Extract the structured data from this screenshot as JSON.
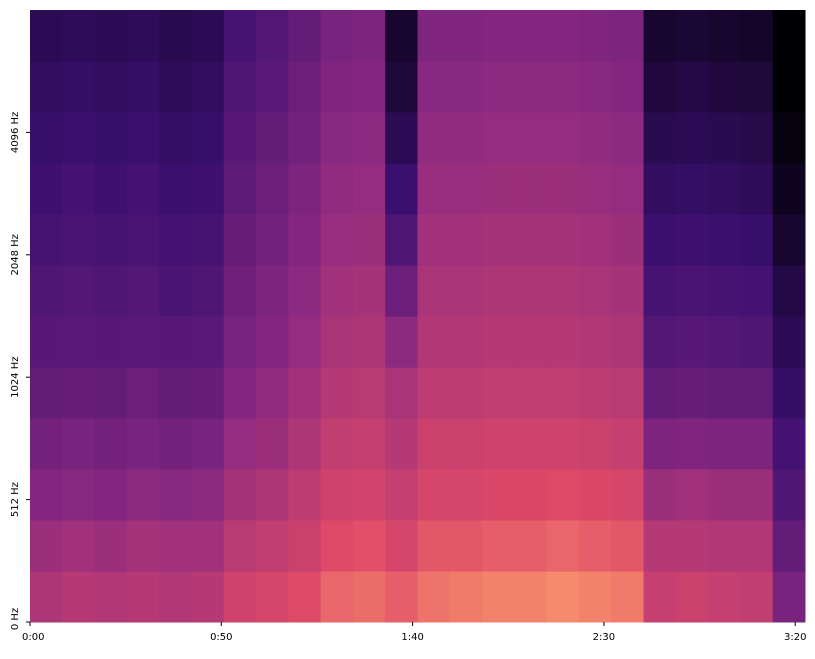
{
  "chart_data": {
    "type": "heatmap",
    "xticks": [
      {
        "value": 0,
        "label": "0:00"
      },
      {
        "value": 50,
        "label": "0:50"
      },
      {
        "value": 100,
        "label": "1:40"
      },
      {
        "value": 150,
        "label": "2:30"
      },
      {
        "value": 200,
        "label": "3:20"
      }
    ],
    "yticks": [
      {
        "value": 0,
        "label": "0 Hz"
      },
      {
        "value": 512,
        "label": "512 Hz"
      },
      {
        "value": 1024,
        "label": "1024 Hz"
      },
      {
        "value": 2048,
        "label": "2048 Hz"
      },
      {
        "value": 4096,
        "label": "4096 Hz"
      }
    ],
    "xlim": [
      0,
      202.56
    ],
    "ylim": [
      0,
      8192
    ],
    "yscale": "symlog",
    "ylinthresh": 512,
    "ylogbase": 2,
    "zlim": [
      -80,
      0
    ],
    "colorscale": [
      [
        0,
        "#000004"
      ],
      [
        0.25,
        "#3b0f70"
      ],
      [
        0.5,
        "#8c2981"
      ],
      [
        0.75,
        "#de4968"
      ],
      [
        0.9,
        "#fe9f6d"
      ],
      [
        1,
        "#fcfdbf"
      ]
    ],
    "xedges": [
      0,
      8.44,
      16.88,
      25.32,
      33.76,
      42.2,
      50.64,
      59.08,
      67.52,
      75.96,
      84.4,
      92.84,
      101.28,
      109.72,
      118.16,
      126.6,
      135.04,
      143.48,
      151.92,
      160.36,
      168.8,
      177.24,
      185.68,
      194.12,
      202.56
    ],
    "yedges": [
      0,
      213,
      427,
      609,
      813,
      1084,
      1448,
      1932,
      2580,
      3444,
      4598,
      6137,
      8192
    ],
    "z": [
      [
        -32,
        -30,
        -31,
        -30,
        -31,
        -30,
        -24,
        -22,
        -20,
        -16,
        -15,
        -17,
        -14,
        -13,
        -12,
        -12,
        -11,
        -12,
        -13,
        -26,
        -25,
        -26,
        -27,
        -45
      ],
      [
        -36,
        -35,
        -36,
        -34,
        -35,
        -35,
        -29,
        -27,
        -25,
        -20,
        -19,
        -22,
        -18,
        -18,
        -17,
        -17,
        -16,
        -17,
        -18,
        -30,
        -30,
        -31,
        -31,
        -50
      ],
      [
        -42,
        -41,
        -42,
        -40,
        -41,
        -40,
        -34,
        -32,
        -28,
        -24,
        -23,
        -26,
        -22,
        -22,
        -21,
        -21,
        -20,
        -21,
        -22,
        -36,
        -35,
        -36,
        -36,
        -55
      ],
      [
        -46,
        -45,
        -46,
        -45,
        -46,
        -45,
        -38,
        -36,
        -32,
        -27,
        -26,
        -30,
        -25,
        -25,
        -24,
        -24,
        -24,
        -25,
        -26,
        -44,
        -43,
        -44,
        -44,
        -58
      ],
      [
        -50,
        -49,
        -50,
        -48,
        -50,
        -49,
        -42,
        -39,
        -35,
        -30,
        -29,
        -33,
        -28,
        -28,
        -27,
        -27,
        -27,
        -28,
        -29,
        -50,
        -49,
        -50,
        -50,
        -62
      ],
      [
        -53,
        -52,
        -53,
        -52,
        -53,
        -52,
        -45,
        -42,
        -38,
        -33,
        -32,
        -40,
        -31,
        -31,
        -30,
        -30,
        -30,
        -31,
        -32,
        -54,
        -53,
        -54,
        -55,
        -65
      ],
      [
        -55,
        -54,
        -55,
        -54,
        -56,
        -55,
        -47,
        -44,
        -40,
        -35,
        -34,
        -48,
        -33,
        -33,
        -32,
        -32,
        -32,
        -33,
        -34,
        -57,
        -56,
        -57,
        -58,
        -68
      ],
      [
        -57,
        -56,
        -57,
        -56,
        -58,
        -57,
        -49,
        -46,
        -42,
        -37,
        -36,
        -55,
        -35,
        -35,
        -34,
        -34,
        -34,
        -35,
        -36,
        -60,
        -59,
        -60,
        -61,
        -72
      ],
      [
        -59,
        -58,
        -59,
        -58,
        -60,
        -59,
        -51,
        -48,
        -44,
        -39,
        -38,
        -60,
        -37,
        -37,
        -36,
        -36,
        -36,
        -37,
        -38,
        -63,
        -62,
        -63,
        -64,
        -75
      ],
      [
        -61,
        -60,
        -61,
        -60,
        -62,
        -61,
        -53,
        -50,
        -46,
        -41,
        -40,
        -65,
        -39,
        -39,
        -38,
        -38,
        -38,
        -39,
        -40,
        -66,
        -65,
        -66,
        -67,
        -78
      ],
      [
        -63,
        -62,
        -63,
        -62,
        -64,
        -63,
        -55,
        -52,
        -48,
        -43,
        -42,
        -70,
        -41,
        -41,
        -40,
        -40,
        -40,
        -41,
        -42,
        -69,
        -68,
        -69,
        -70,
        -80
      ],
      [
        -65,
        -64,
        -65,
        -64,
        -66,
        -65,
        -57,
        -54,
        -50,
        -45,
        -44,
        -72,
        -43,
        -43,
        -42,
        -42,
        -42,
        -43,
        -44,
        -72,
        -71,
        -72,
        -73,
        -80
      ]
    ]
  }
}
